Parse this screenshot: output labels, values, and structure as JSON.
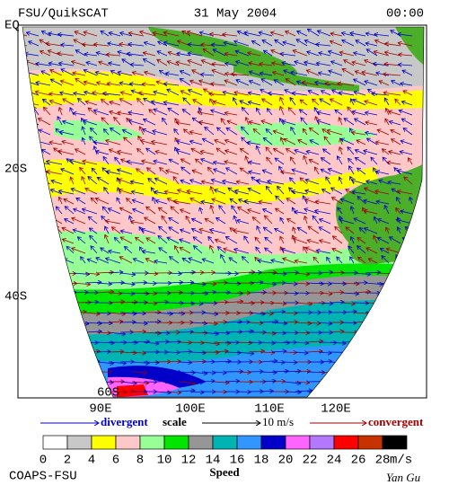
{
  "header": {
    "source": "FSU/QuikSCAT",
    "date": "31 May 2004",
    "time": "00:00"
  },
  "map": {
    "lat_labels": [
      "EQ",
      "20S",
      "40S",
      "60S"
    ],
    "lon_labels": [
      "90E",
      "100E",
      "110E",
      "120E"
    ]
  },
  "legend": {
    "divergent": "divergent",
    "scale": "scale",
    "scale_value": "10 m/s",
    "convergent": "convergent"
  },
  "colorbar": {
    "ticks": [
      0,
      2,
      4,
      6,
      8,
      10,
      12,
      14,
      16,
      18,
      20,
      22,
      24,
      26,
      28
    ],
    "unit": "m/s",
    "label": "Speed",
    "colors": [
      "#ffffff",
      "#c8c8c8",
      "#ffff00",
      "#ffc8c8",
      "#96ff96",
      "#00e600",
      "#969696",
      "#00b4b4",
      "#3296ff",
      "#0000c8",
      "#ff64ff",
      "#b478ff",
      "#ff0000",
      "#c83200",
      "#000000"
    ]
  },
  "footer": {
    "left": "COAPS-FSU",
    "right": "Yan Gu"
  }
}
